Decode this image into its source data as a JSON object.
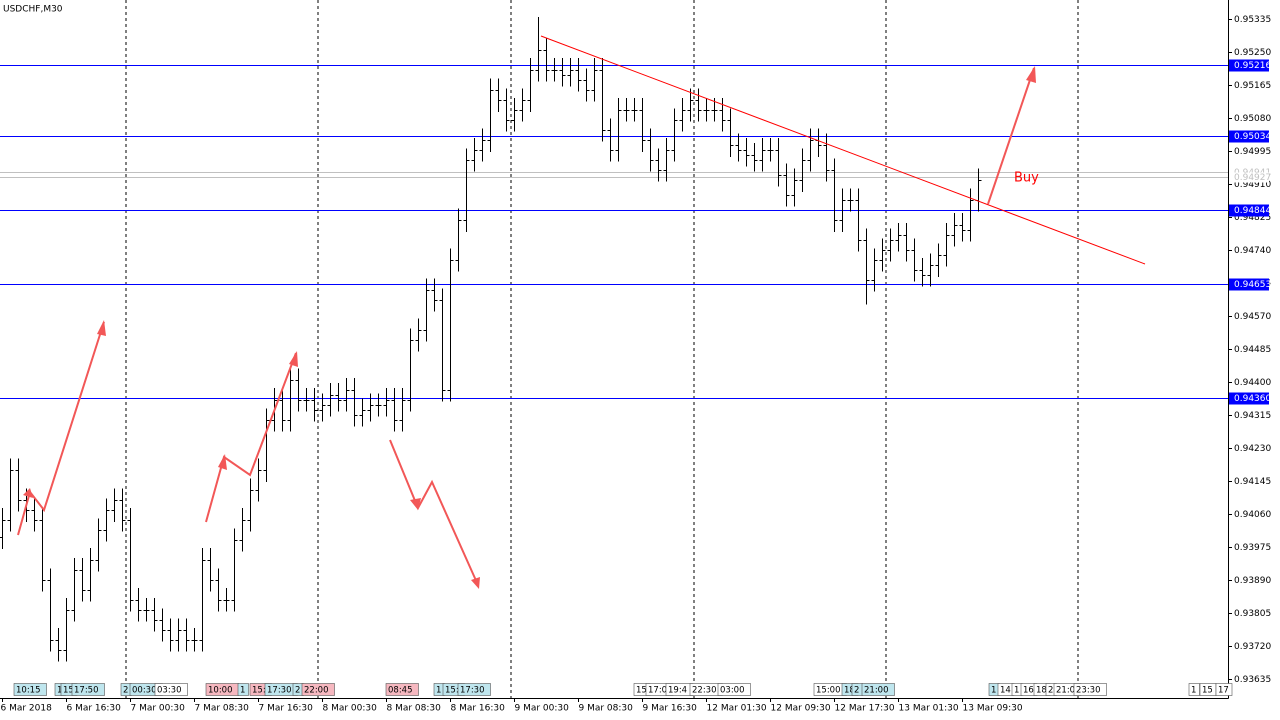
{
  "chart_data": {
    "type": "ohlc",
    "title": "USDCHF,M30",
    "annotation": "Buy",
    "color": "#000000",
    "level_color": "#0000ff",
    "price_line_color": "#c0c0c0",
    "trend_color": "#ff0000",
    "ylim": [
      0.93586,
      0.95384
    ],
    "yticks": [
      0.95335,
      {
        "value": 0.9525,
        "label": "0.95250"
      },
      0.95165,
      {
        "value": 0.9508,
        "label": "0.95080"
      },
      0.94995,
      {
        "value": 0.9491,
        "label": "0.94910"
      },
      0.94825,
      {
        "value": 0.9474,
        "label": "0.94740"
      },
      0.94655,
      {
        "value": 0.9457,
        "label": "0.94570"
      },
      0.94485,
      {
        "value": 0.944,
        "label": "0.94400"
      },
      0.94315,
      {
        "value": 0.9423,
        "label": "0.94230"
      },
      0.94145,
      {
        "value": 0.9406,
        "label": "0.94060"
      },
      0.93975,
      {
        "value": 0.9389,
        "label": "0.93890"
      },
      0.93805,
      {
        "value": 0.9372,
        "label": "0.93720"
      },
      0.93635
    ],
    "xticks": [
      {
        "value": 0,
        "label": "6 Mar 2018"
      },
      {
        "value": 8,
        "label": "6 Mar 16:30"
      },
      {
        "value": 16,
        "label": "7 Mar 00:30"
      },
      {
        "value": 24,
        "label": "7 Mar 08:30"
      },
      {
        "value": 32,
        "label": "7 Mar 16:30"
      },
      {
        "value": 40,
        "label": "8 Mar 00:30"
      },
      {
        "value": 48,
        "label": "8 Mar 08:30"
      },
      {
        "value": 56,
        "label": "8 Mar 16:30"
      },
      {
        "value": 64,
        "label": "9 Mar 00:30"
      },
      {
        "value": 72,
        "label": "9 Mar 08:30"
      },
      {
        "value": 80,
        "label": "9 Mar 16:30"
      },
      {
        "value": 88,
        "label": "12 Mar 01:30"
      },
      {
        "value": 96,
        "label": "12 Mar 09:30"
      },
      {
        "value": 104,
        "label": "12 Mar 17:30"
      },
      {
        "value": 112,
        "label": "13 Mar 01:30"
      },
      {
        "value": 120,
        "label": "13 Mar 09:30"
      }
    ],
    "levels": [
      {
        "value": 0.95216,
        "label": "0.95216"
      },
      {
        "value": 0.95034,
        "label": "0.95034"
      },
      {
        "value": 0.94844,
        "label": "0.94844"
      },
      {
        "value": 0.94653,
        "label": "0.94653"
      },
      {
        "value": 0.9436,
        "label": "0.94360"
      }
    ],
    "price_lines": [
      0.94941,
      0.94927
    ],
    "events": [
      "10:15",
      "1",
      "15",
      "17:50",
      "2",
      "00:30",
      "03:30",
      "10:00",
      "1",
      "15:",
      "17:30",
      "2",
      "22:00",
      "08:45",
      "1",
      "15:",
      "17:30",
      "15",
      "17:0",
      "19:4",
      "22:30",
      "03:00",
      "15:00",
      "18",
      "2",
      "21:00",
      "1",
      "14",
      "1",
      "16",
      "18",
      "2",
      "21:0",
      "23:30",
      "1",
      "15",
      "17"
    ],
    "ohlc": [
      [
        0.94,
        0.94075,
        0.9397,
        0.94045
      ],
      [
        0.94045,
        0.94203,
        0.94015,
        0.94173
      ],
      [
        0.94173,
        0.94203,
        0.94066,
        0.94096
      ],
      [
        0.94096,
        0.94126,
        0.9404,
        0.9407
      ],
      [
        0.9407,
        0.941,
        0.94015,
        0.94045
      ],
      [
        0.94045,
        0.94075,
        0.9386,
        0.9389
      ],
      [
        0.9389,
        0.9392,
        0.93706,
        0.93736
      ],
      [
        0.93736,
        0.93766,
        0.9368,
        0.9371
      ],
      [
        0.9371,
        0.93843,
        0.9368,
        0.93813
      ],
      [
        0.93813,
        0.93946,
        0.93783,
        0.93916
      ],
      [
        0.93916,
        0.93946,
        0.93834,
        0.93864
      ],
      [
        0.93864,
        0.93972,
        0.93834,
        0.93942
      ],
      [
        0.93942,
        0.94049,
        0.93912,
        0.94019
      ],
      [
        0.94019,
        0.941,
        0.93989,
        0.9407
      ],
      [
        0.9407,
        0.94126,
        0.9404,
        0.94096
      ],
      [
        0.94096,
        0.94126,
        0.94015,
        0.94045
      ],
      [
        0.94045,
        0.94075,
        0.93809,
        0.93839
      ],
      [
        0.93839,
        0.93869,
        0.93783,
        0.93813
      ],
      [
        0.93813,
        0.93843,
        0.93783,
        0.93813
      ],
      [
        0.93813,
        0.93843,
        0.93757,
        0.93787
      ],
      [
        0.93787,
        0.93817,
        0.93731,
        0.93761
      ],
      [
        0.93761,
        0.93791,
        0.93706,
        0.93736
      ],
      [
        0.93736,
        0.93791,
        0.93706,
        0.93761
      ],
      [
        0.93761,
        0.93791,
        0.93706,
        0.93736
      ],
      [
        0.93736,
        0.93766,
        0.93706,
        0.93736
      ],
      [
        0.93736,
        0.93972,
        0.93706,
        0.93942
      ],
      [
        0.93942,
        0.93972,
        0.9386,
        0.9389
      ],
      [
        0.9389,
        0.9392,
        0.93809,
        0.93839
      ],
      [
        0.93839,
        0.93869,
        0.93809,
        0.93839
      ],
      [
        0.93839,
        0.94023,
        0.93809,
        0.93993
      ],
      [
        0.93993,
        0.94075,
        0.93963,
        0.94045
      ],
      [
        0.94045,
        0.94152,
        0.94015,
        0.94122
      ],
      [
        0.94122,
        0.94203,
        0.94092,
        0.94173
      ],
      [
        0.94173,
        0.94332,
        0.94143,
        0.94302
      ],
      [
        0.94302,
        0.94384,
        0.94272,
        0.94354
      ],
      [
        0.94354,
        0.94384,
        0.94272,
        0.94302
      ],
      [
        0.94302,
        0.94435,
        0.94272,
        0.94405
      ],
      [
        0.94405,
        0.94435,
        0.94324,
        0.94354
      ],
      [
        0.94354,
        0.94384,
        0.94324,
        0.94354
      ],
      [
        0.94354,
        0.94384,
        0.94298,
        0.94328
      ],
      [
        0.94328,
        0.94371,
        0.94298,
        0.94341
      ],
      [
        0.94341,
        0.94397,
        0.94311,
        0.94367
      ],
      [
        0.94367,
        0.94397,
        0.94324,
        0.94354
      ],
      [
        0.94354,
        0.9441,
        0.94324,
        0.9438
      ],
      [
        0.9438,
        0.9441,
        0.94285,
        0.94315
      ],
      [
        0.94315,
        0.94358,
        0.94285,
        0.94328
      ],
      [
        0.94328,
        0.94371,
        0.94298,
        0.94341
      ],
      [
        0.94341,
        0.94371,
        0.94311,
        0.94341
      ],
      [
        0.94341,
        0.94384,
        0.94311,
        0.94354
      ],
      [
        0.94354,
        0.94384,
        0.94272,
        0.94302
      ],
      [
        0.94302,
        0.94384,
        0.94272,
        0.94354
      ],
      [
        0.94354,
        0.94538,
        0.94324,
        0.94508
      ],
      [
        0.94508,
        0.94564,
        0.94478,
        0.94534
      ],
      [
        0.94534,
        0.94667,
        0.94504,
        0.94637
      ],
      [
        0.94637,
        0.94667,
        0.94581,
        0.94611
      ],
      [
        0.94611,
        0.94641,
        0.9435,
        0.9438
      ],
      [
        0.9438,
        0.94744,
        0.9435,
        0.94714
      ],
      [
        0.94714,
        0.94847,
        0.94684,
        0.94817
      ],
      [
        0.94817,
        0.95002,
        0.94787,
        0.94972
      ],
      [
        0.94972,
        0.95028,
        0.94942,
        0.94998
      ],
      [
        0.94998,
        0.95053,
        0.94968,
        0.95023
      ],
      [
        0.95023,
        0.95182,
        0.94993,
        0.95152
      ],
      [
        0.95152,
        0.95182,
        0.95096,
        0.95126
      ],
      [
        0.95126,
        0.95156,
        0.95045,
        0.95075
      ],
      [
        0.95075,
        0.95131,
        0.95045,
        0.95101
      ],
      [
        0.95101,
        0.95156,
        0.95071,
        0.95126
      ],
      [
        0.95126,
        0.95234,
        0.95096,
        0.95204
      ],
      [
        0.95204,
        0.9534,
        0.95174,
        0.95255
      ],
      [
        0.95255,
        0.95285,
        0.95174,
        0.95204
      ],
      [
        0.95204,
        0.95234,
        0.95174,
        0.95204
      ],
      [
        0.95204,
        0.95234,
        0.95161,
        0.95191
      ],
      [
        0.95191,
        0.95234,
        0.95161,
        0.95204
      ],
      [
        0.95204,
        0.95234,
        0.95148,
        0.95178
      ],
      [
        0.95178,
        0.95208,
        0.95122,
        0.95152
      ],
      [
        0.95152,
        0.95234,
        0.95122,
        0.95204
      ],
      [
        0.95204,
        0.95234,
        0.95019,
        0.95049
      ],
      [
        0.95049,
        0.95079,
        0.94968,
        0.94998
      ],
      [
        0.94998,
        0.95131,
        0.94968,
        0.95101
      ],
      [
        0.95101,
        0.95131,
        0.95071,
        0.95101
      ],
      [
        0.95101,
        0.95131,
        0.95071,
        0.95101
      ],
      [
        0.95101,
        0.95131,
        0.94993,
        0.95023
      ],
      [
        0.95023,
        0.95053,
        0.94942,
        0.94972
      ],
      [
        0.94972,
        0.95002,
        0.94916,
        0.94946
      ],
      [
        0.94946,
        0.95028,
        0.94916,
        0.94998
      ],
      [
        0.94998,
        0.95105,
        0.94968,
        0.95075
      ],
      [
        0.95075,
        0.95131,
        0.95045,
        0.95101
      ],
      [
        0.95101,
        0.95156,
        0.95071,
        0.95126
      ],
      [
        0.95126,
        0.95156,
        0.95071,
        0.95101
      ],
      [
        0.95101,
        0.95131,
        0.95071,
        0.95101
      ],
      [
        0.95101,
        0.95131,
        0.95071,
        0.95101
      ],
      [
        0.95101,
        0.95131,
        0.95045,
        0.95075
      ],
      [
        0.95075,
        0.95105,
        0.9498,
        0.9501
      ],
      [
        0.9501,
        0.9504,
        0.94968,
        0.94998
      ],
      [
        0.94998,
        0.95028,
        0.94955,
        0.94985
      ],
      [
        0.94985,
        0.95015,
        0.94942,
        0.94972
      ],
      [
        0.94972,
        0.95028,
        0.94942,
        0.94998
      ],
      [
        0.94998,
        0.95028,
        0.94968,
        0.94998
      ],
      [
        0.94998,
        0.95028,
        0.94903,
        0.94933
      ],
      [
        0.94933,
        0.94963,
        0.94852,
        0.94882
      ],
      [
        0.94882,
        0.9495,
        0.94852,
        0.9492
      ],
      [
        0.9492,
        0.95002,
        0.9489,
        0.94972
      ],
      [
        0.94972,
        0.95053,
        0.94942,
        0.95023
      ],
      [
        0.95023,
        0.95053,
        0.9498,
        0.9501
      ],
      [
        0.9501,
        0.9504,
        0.94916,
        0.94946
      ],
      [
        0.94946,
        0.94976,
        0.94787,
        0.94817
      ],
      [
        0.94817,
        0.94899,
        0.94787,
        0.94869
      ],
      [
        0.94869,
        0.94899,
        0.94839,
        0.94869
      ],
      [
        0.94869,
        0.94899,
        0.94736,
        0.94766
      ],
      [
        0.94766,
        0.94796,
        0.946,
        0.94663
      ],
      [
        0.94663,
        0.94744,
        0.94633,
        0.94714
      ],
      [
        0.94714,
        0.9477,
        0.94684,
        0.9474
      ],
      [
        0.9474,
        0.94796,
        0.9471,
        0.94766
      ],
      [
        0.94766,
        0.94809,
        0.94736,
        0.94779
      ],
      [
        0.94779,
        0.94809,
        0.9471,
        0.9474
      ],
      [
        0.9474,
        0.9477,
        0.94659,
        0.94689
      ],
      [
        0.94689,
        0.94719,
        0.94646,
        0.94676
      ],
      [
        0.94676,
        0.94731,
        0.94646,
        0.94701
      ],
      [
        0.94701,
        0.94757,
        0.94671,
        0.94727
      ],
      [
        0.94727,
        0.94809,
        0.94697,
        0.94779
      ],
      [
        0.94779,
        0.94835,
        0.94749,
        0.94805
      ],
      [
        0.94805,
        0.94835,
        0.94762,
        0.94792
      ],
      [
        0.94792,
        0.94899,
        0.94762,
        0.94869
      ],
      [
        0.94869,
        0.9495,
        0.94839,
        0.9492
      ]
    ]
  }
}
